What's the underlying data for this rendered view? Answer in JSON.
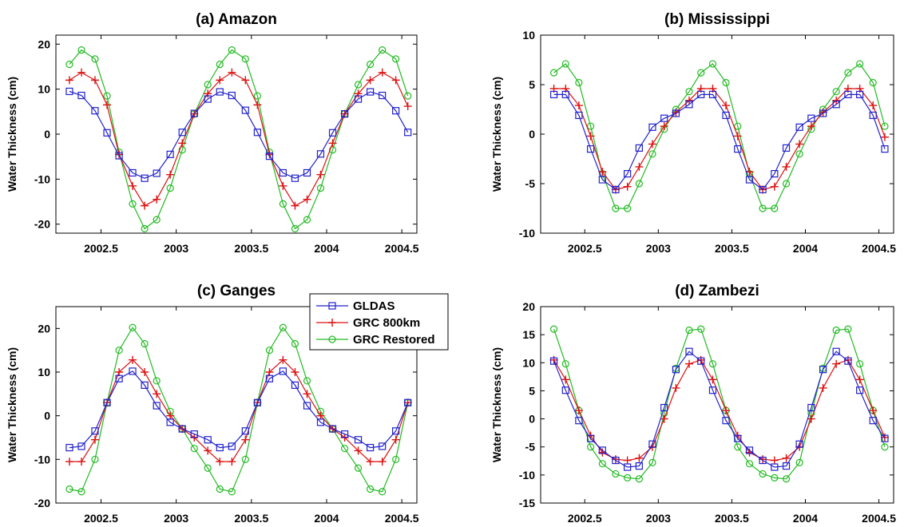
{
  "legend": {
    "entries": [
      {
        "label": "GLDAS",
        "color": "#2222cc",
        "marker": "square"
      },
      {
        "label": "GRC 800km",
        "color": "#dd1111",
        "marker": "plus"
      },
      {
        "label": "GRC Restored",
        "color": "#22bb22",
        "marker": "circle"
      }
    ]
  },
  "chart_data": [
    {
      "type": "line",
      "title": "(a) Amazon",
      "ylabel": "Water Thickness (cm)",
      "xlabel": "",
      "xlim": [
        2002.2,
        2004.6
      ],
      "ylim": [
        -22,
        22
      ],
      "xticks": [
        2002.5,
        2003,
        2003.5,
        2004,
        2004.5
      ],
      "xtick_labels": [
        "2002.5",
        "2003",
        "2003.5",
        "2004",
        "2004.5"
      ],
      "yticks": [
        -20,
        -10,
        0,
        10,
        20
      ],
      "ytick_labels": [
        "-20",
        "-10",
        "0",
        "10",
        "20"
      ],
      "x": [
        2002.29,
        2002.37,
        2002.46,
        2002.54,
        2002.62,
        2002.71,
        2002.79,
        2002.87,
        2002.96,
        2003.04,
        2003.12,
        2003.21,
        2003.29,
        2003.37,
        2003.46,
        2003.54,
        2003.62,
        2003.71,
        2003.79,
        2003.87,
        2003.96,
        2004.04,
        2004.12,
        2004.21,
        2004.29,
        2004.37,
        2004.46,
        2004.54
      ],
      "series": [
        {
          "name": "GLDAS",
          "values": [
            9.5,
            8.6,
            5.2,
            0.3,
            -4.8,
            -8.6,
            -9.8,
            -8.7,
            -4.5,
            0.4,
            4.6,
            7.8,
            9.4,
            8.6,
            5.3,
            0.4,
            -4.9,
            -8.6,
            -9.8,
            -8.6,
            -4.4,
            0.3,
            4.5,
            7.8,
            9.4,
            8.6,
            5.2,
            0.4
          ]
        },
        {
          "name": "GRC 800km",
          "values": [
            12.0,
            13.7,
            12.0,
            6.5,
            -4.5,
            -11.5,
            -15.9,
            -14.5,
            -9.0,
            -2.0,
            4.5,
            9.0,
            12.0,
            13.7,
            12.0,
            6.5,
            -4.5,
            -11.5,
            -15.9,
            -14.5,
            -9.0,
            -2.0,
            4.5,
            9.0,
            12.0,
            13.7,
            12.0,
            6.2
          ]
        },
        {
          "name": "GRC Restored",
          "values": [
            15.5,
            18.7,
            16.7,
            8.5,
            -4.0,
            -15.5,
            -21.0,
            -19.0,
            -12.0,
            -3.5,
            4.5,
            11.0,
            15.5,
            18.7,
            16.7,
            8.5,
            -4.0,
            -15.5,
            -21.0,
            -19.0,
            -12.0,
            -3.5,
            4.5,
            11.0,
            15.5,
            18.7,
            16.7,
            8.5
          ]
        }
      ]
    },
    {
      "type": "line",
      "title": "(b) Mississippi",
      "ylabel": "Water Thickness (cm)",
      "xlabel": "",
      "xlim": [
        2002.2,
        2004.6
      ],
      "ylim": [
        -10,
        10
      ],
      "xticks": [
        2002.5,
        2003,
        2003.5,
        2004,
        2004.5
      ],
      "xtick_labels": [
        "2002.5",
        "2003",
        "2003.5",
        "2004",
        "2004.5"
      ],
      "yticks": [
        -10,
        -5,
        0,
        5,
        10
      ],
      "ytick_labels": [
        "-10",
        "-5",
        "0",
        "5",
        "10"
      ],
      "x": [
        2002.29,
        2002.37,
        2002.46,
        2002.54,
        2002.62,
        2002.71,
        2002.79,
        2002.87,
        2002.96,
        2003.04,
        2003.12,
        2003.21,
        2003.29,
        2003.37,
        2003.46,
        2003.54,
        2003.62,
        2003.71,
        2003.79,
        2003.87,
        2003.96,
        2004.04,
        2004.12,
        2004.21,
        2004.29,
        2004.37,
        2004.46,
        2004.54
      ],
      "series": [
        {
          "name": "GLDAS",
          "values": [
            4.0,
            4.0,
            1.9,
            -1.5,
            -4.6,
            -5.6,
            -4.0,
            -1.4,
            0.7,
            1.6,
            2.1,
            3.0,
            4.0,
            4.0,
            1.9,
            -1.5,
            -4.6,
            -5.6,
            -4.0,
            -1.4,
            0.7,
            1.6,
            2.1,
            3.0,
            4.0,
            4.0,
            1.9,
            -1.5
          ]
        },
        {
          "name": "GRC 800km",
          "values": [
            4.6,
            4.6,
            2.9,
            -0.2,
            -3.8,
            -5.6,
            -5.3,
            -3.3,
            -1.0,
            0.8,
            2.2,
            3.4,
            4.6,
            4.6,
            2.9,
            -0.2,
            -3.8,
            -5.6,
            -5.3,
            -3.3,
            -1.0,
            0.8,
            2.2,
            3.4,
            4.6,
            4.6,
            2.9,
            -0.3
          ]
        },
        {
          "name": "GRC Restored",
          "values": [
            6.2,
            7.1,
            5.2,
            0.8,
            -4.0,
            -7.5,
            -7.5,
            -5.0,
            -2.0,
            0.5,
            2.5,
            4.3,
            6.2,
            7.1,
            5.2,
            0.8,
            -4.0,
            -7.5,
            -7.5,
            -5.0,
            -2.0,
            0.5,
            2.5,
            4.3,
            6.2,
            7.1,
            5.2,
            0.8
          ]
        }
      ]
    },
    {
      "type": "line",
      "title": "(c) Ganges",
      "ylabel": "Water Thickness (cm)",
      "xlabel": "",
      "xlim": [
        2002.2,
        2004.6
      ],
      "ylim": [
        -20,
        25
      ],
      "xticks": [
        2002.5,
        2003,
        2003.5,
        2004,
        2004.5
      ],
      "xtick_labels": [
        "2002.5",
        "2003",
        "2003.5",
        "2004",
        "2004.5"
      ],
      "yticks": [
        -20,
        -10,
        0,
        10,
        20
      ],
      "ytick_labels": [
        "-20",
        "-10",
        "0",
        "10",
        "20"
      ],
      "x": [
        2002.29,
        2002.37,
        2002.46,
        2002.54,
        2002.62,
        2002.71,
        2002.79,
        2002.87,
        2002.96,
        2003.04,
        2003.12,
        2003.21,
        2003.29,
        2003.37,
        2003.46,
        2003.54,
        2003.62,
        2003.71,
        2003.79,
        2003.87,
        2003.96,
        2004.04,
        2004.12,
        2004.21,
        2004.29,
        2004.37,
        2004.46,
        2004.54
      ],
      "series": [
        {
          "name": "GLDAS",
          "values": [
            -7.3,
            -7.0,
            -3.5,
            3.0,
            8.5,
            10.2,
            7.0,
            2.3,
            -1.5,
            -3.0,
            -4.2,
            -5.5,
            -7.3,
            -7.0,
            -3.5,
            3.0,
            8.5,
            10.2,
            7.0,
            2.3,
            -1.5,
            -3.0,
            -4.2,
            -5.5,
            -7.3,
            -7.0,
            -3.5,
            3.0
          ]
        },
        {
          "name": "GRC 800km",
          "values": [
            -10.5,
            -10.5,
            -5.5,
            3.0,
            10.0,
            12.8,
            10.0,
            5.0,
            0.0,
            -3.0,
            -5.0,
            -8.0,
            -10.5,
            -10.5,
            -5.5,
            3.0,
            10.0,
            12.8,
            10.0,
            5.0,
            0.0,
            -3.0,
            -5.0,
            -8.0,
            -10.5,
            -10.5,
            -5.5,
            3.0
          ]
        },
        {
          "name": "GRC Restored",
          "values": [
            -16.8,
            -17.4,
            -10.0,
            3.0,
            15.0,
            20.2,
            16.5,
            8.0,
            1.0,
            -3.0,
            -7.5,
            -12.0,
            -16.8,
            -17.4,
            -10.0,
            3.0,
            15.0,
            20.2,
            16.5,
            8.0,
            1.0,
            -3.0,
            -7.5,
            -12.0,
            -16.8,
            -17.4,
            -10.0,
            3.0
          ]
        }
      ]
    },
    {
      "type": "line",
      "title": "(d) Zambezi",
      "ylabel": "Water Thickness (cm)",
      "xlabel": "",
      "xlim": [
        2002.2,
        2004.6
      ],
      "ylim": [
        -15,
        20
      ],
      "xticks": [
        2002.5,
        2003,
        2003.5,
        2004,
        2004.5
      ],
      "xtick_labels": [
        "2002.5",
        "2003",
        "2003.5",
        "2004",
        "2004.5"
      ],
      "yticks": [
        -15,
        -10,
        -5,
        0,
        5,
        10,
        15,
        20
      ],
      "ytick_labels": [
        "-15",
        "-10",
        "-5",
        "0",
        "5",
        "10",
        "15",
        "20"
      ],
      "x": [
        2002.29,
        2002.37,
        2002.46,
        2002.54,
        2002.62,
        2002.71,
        2002.79,
        2002.87,
        2002.96,
        2003.04,
        2003.12,
        2003.21,
        2003.29,
        2003.37,
        2003.46,
        2003.54,
        2003.62,
        2003.71,
        2003.79,
        2003.87,
        2003.96,
        2004.04,
        2004.12,
        2004.21,
        2004.29,
        2004.37,
        2004.46,
        2004.54
      ],
      "series": [
        {
          "name": "GLDAS",
          "values": [
            10.3,
            5.1,
            -0.3,
            -3.5,
            -5.6,
            -7.4,
            -8.6,
            -8.4,
            -4.5,
            2.0,
            8.8,
            12.0,
            10.3,
            5.1,
            -0.3,
            -3.5,
            -5.6,
            -7.4,
            -8.6,
            -8.4,
            -4.5,
            2.0,
            8.8,
            12.0,
            10.3,
            5.1,
            -0.3,
            -3.5
          ]
        },
        {
          "name": "GRC 800km",
          "values": [
            10.5,
            7.0,
            1.5,
            -3.0,
            -6.0,
            -7.2,
            -7.4,
            -7.0,
            -5.0,
            0.0,
            5.5,
            9.8,
            10.5,
            7.0,
            1.5,
            -3.0,
            -6.0,
            -7.2,
            -7.4,
            -7.0,
            -5.0,
            0.0,
            5.5,
            9.8,
            10.5,
            7.0,
            1.5,
            -3.3
          ]
        },
        {
          "name": "GRC Restored",
          "values": [
            16.0,
            9.8,
            1.5,
            -5.0,
            -8.0,
            -9.8,
            -10.5,
            -10.7,
            -7.8,
            1.0,
            9.0,
            15.8,
            16.0,
            9.8,
            1.5,
            -5.0,
            -8.0,
            -9.8,
            -10.5,
            -10.7,
            -7.8,
            1.0,
            9.0,
            15.8,
            16.0,
            9.8,
            1.5,
            -5.0
          ]
        }
      ]
    }
  ]
}
